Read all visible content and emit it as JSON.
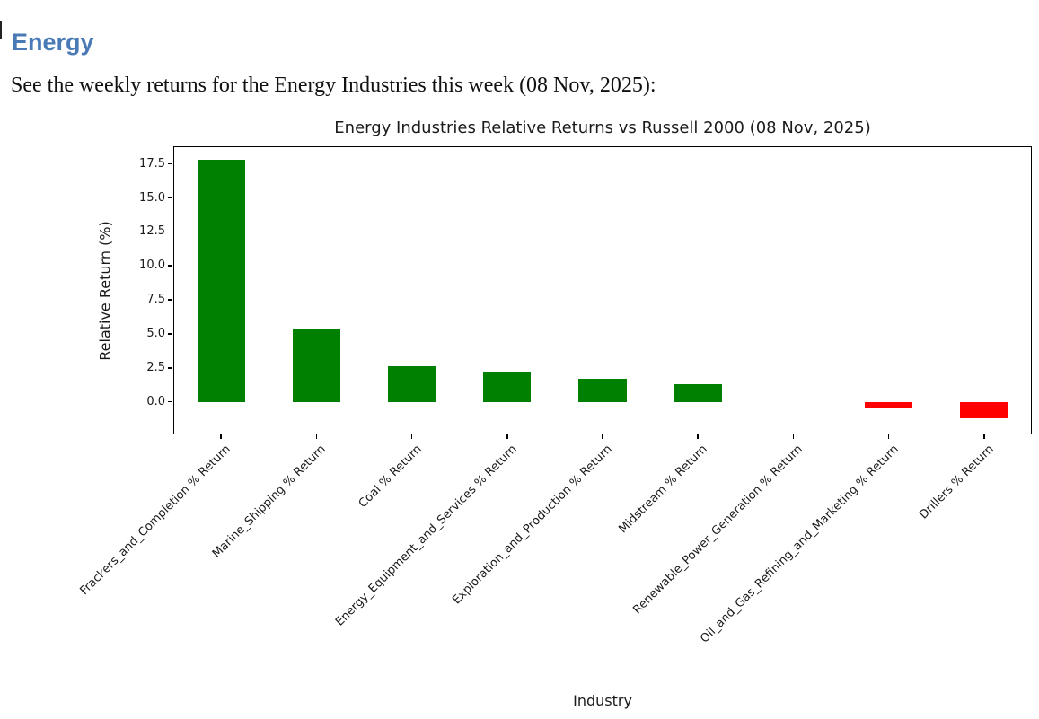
{
  "page": {
    "heading": "Energy",
    "intro": "See the weekly returns for the Energy Industries this week (08 Nov, 2025):"
  },
  "colors": {
    "heading": "#4a7ab5",
    "body_text": "#111111",
    "chart_text": "#1a1a1a",
    "spine": "#000000",
    "positive_bar": "#008000",
    "negative_bar": "#ff0000"
  },
  "chart_data": {
    "type": "bar",
    "title": "Energy Industries Relative Returns vs Russell 2000 (08 Nov, 2025)",
    "xlabel": "Industry",
    "ylabel": "Relative Return (%)",
    "categories": [
      "Frackers_and_Completion % Return",
      "Marine_Shipping % Return",
      "Coal % Return",
      "Energy_Equipment_and_Services % Return",
      "Exploration_and_Production % Return",
      "Midstream % Return",
      "Renewable_Power_Generation % Return",
      "Oil_and_Gas_Refining_and_Marketing % Return",
      "Drillers % Return"
    ],
    "values": [
      17.8,
      5.4,
      2.6,
      2.2,
      1.7,
      1.3,
      0.0,
      -0.5,
      -1.2
    ],
    "bar_colors": [
      "#008000",
      "#008000",
      "#008000",
      "#008000",
      "#008000",
      "#008000",
      "#008000",
      "#ff0000",
      "#ff0000"
    ],
    "yticks": [
      0.0,
      2.5,
      5.0,
      7.5,
      10.0,
      12.5,
      15.0,
      17.5
    ],
    "ylim": [
      -2.4,
      18.8
    ],
    "xtick_rotation_deg": 45,
    "grid": false,
    "legend": null
  }
}
